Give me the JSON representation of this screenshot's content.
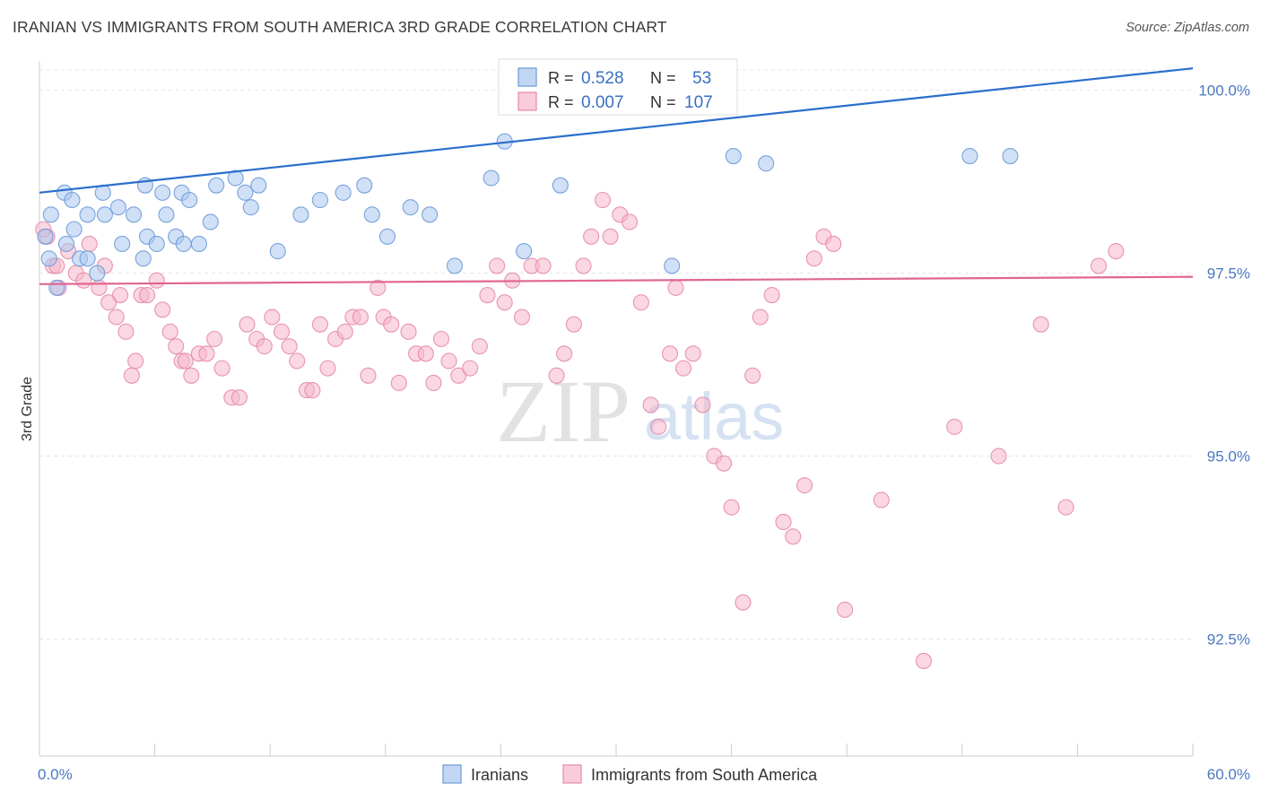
{
  "title": "IRANIAN VS IMMIGRANTS FROM SOUTH AMERICA 3RD GRADE CORRELATION CHART",
  "source": "Source: ZipAtlas.com",
  "watermark": {
    "zip": "ZIP",
    "atlas": "atlas"
  },
  "colors": {
    "blue_fill": "#a9c6ee",
    "blue_stroke": "#6b9ad8",
    "blue_line": "#2a6fcc",
    "pink_fill": "#f6b6ca",
    "pink_stroke": "#e58aa8",
    "pink_line": "#e06690",
    "tick_text": "#4a78c2",
    "grid": "#e4e4e4"
  },
  "stats": {
    "r_label": "R =",
    "n_label": "N =",
    "series1_r": "0.528",
    "series1_n": "53",
    "series2_r": "0.007",
    "series2_n": "107"
  },
  "chart_data": {
    "type": "scatter",
    "xlabel": "",
    "ylabel": "3rd Grade",
    "xlim": [
      0,
      60
    ],
    "ylim": [
      90.9,
      100.4
    ],
    "x_tick_labels": [
      "0.0%",
      "60.0%"
    ],
    "y_ticks": [
      92.5,
      95.0,
      97.5,
      100.0
    ],
    "y_tick_labels": [
      "92.5%",
      "95.0%",
      "97.5%",
      "100.0%"
    ],
    "grid": "horizontal dashed",
    "legend": {
      "position": "bottom-center",
      "entries": [
        "Iranians",
        "Immigrants from South America"
      ]
    },
    "series": [
      {
        "name": "Iranians",
        "color": "#a9c6ee",
        "trend": {
          "x": [
            0,
            60
          ],
          "y": [
            98.6,
            100.3
          ]
        },
        "points": [
          [
            0.5,
            97.7
          ],
          [
            0.9,
            97.3
          ],
          [
            1.4,
            97.9
          ],
          [
            2.1,
            97.7
          ],
          [
            2.5,
            97.7
          ],
          [
            3.0,
            97.5
          ],
          [
            0.3,
            98.0
          ],
          [
            0.6,
            98.3
          ],
          [
            1.3,
            98.6
          ],
          [
            1.8,
            98.1
          ],
          [
            1.7,
            98.5
          ],
          [
            2.5,
            98.3
          ],
          [
            3.3,
            98.6
          ],
          [
            3.4,
            98.3
          ],
          [
            4.1,
            98.4
          ],
          [
            4.3,
            97.9
          ],
          [
            4.9,
            98.3
          ],
          [
            5.4,
            97.7
          ],
          [
            5.6,
            98.0
          ],
          [
            5.5,
            98.7
          ],
          [
            6.1,
            97.9
          ],
          [
            6.4,
            98.6
          ],
          [
            6.6,
            98.3
          ],
          [
            7.1,
            98.0
          ],
          [
            7.4,
            98.6
          ],
          [
            7.5,
            97.9
          ],
          [
            7.8,
            98.5
          ],
          [
            8.3,
            97.9
          ],
          [
            8.9,
            98.2
          ],
          [
            9.2,
            98.7
          ],
          [
            10.2,
            98.8
          ],
          [
            10.7,
            98.6
          ],
          [
            11.0,
            98.4
          ],
          [
            11.4,
            98.7
          ],
          [
            12.4,
            97.8
          ],
          [
            13.6,
            98.3
          ],
          [
            14.6,
            98.5
          ],
          [
            15.8,
            98.6
          ],
          [
            16.9,
            98.7
          ],
          [
            17.3,
            98.3
          ],
          [
            18.1,
            98.0
          ],
          [
            19.3,
            98.4
          ],
          [
            20.3,
            98.3
          ],
          [
            21.6,
            97.6
          ],
          [
            23.5,
            98.8
          ],
          [
            24.2,
            99.3
          ],
          [
            25.2,
            97.8
          ],
          [
            27.1,
            98.7
          ],
          [
            32.9,
            97.6
          ],
          [
            36.1,
            99.1
          ],
          [
            37.8,
            99.0
          ],
          [
            48.4,
            99.1
          ],
          [
            50.5,
            99.1
          ]
        ],
        "points_note_y_units": "percent"
      },
      {
        "name": "Immigrants from South America",
        "color": "#f6b6ca",
        "trend": {
          "x": [
            0,
            60
          ],
          "y": [
            97.35,
            97.45
          ]
        },
        "points": [
          [
            0.4,
            98.0
          ],
          [
            0.7,
            97.6
          ],
          [
            1.0,
            97.3
          ],
          [
            1.5,
            97.8
          ],
          [
            1.9,
            97.5
          ],
          [
            2.3,
            97.4
          ],
          [
            2.6,
            97.9
          ],
          [
            3.1,
            97.3
          ],
          [
            3.4,
            97.6
          ],
          [
            3.6,
            97.1
          ],
          [
            4.0,
            96.9
          ],
          [
            4.2,
            97.2
          ],
          [
            4.5,
            96.7
          ],
          [
            4.8,
            96.1
          ],
          [
            5.0,
            96.3
          ],
          [
            5.3,
            97.2
          ],
          [
            5.6,
            97.2
          ],
          [
            6.1,
            97.4
          ],
          [
            6.4,
            97.0
          ],
          [
            6.8,
            96.7
          ],
          [
            7.1,
            96.5
          ],
          [
            7.4,
            96.3
          ],
          [
            7.6,
            96.3
          ],
          [
            7.9,
            96.1
          ],
          [
            8.3,
            96.4
          ],
          [
            8.7,
            96.4
          ],
          [
            9.1,
            96.6
          ],
          [
            9.5,
            96.2
          ],
          [
            10.0,
            95.8
          ],
          [
            10.4,
            95.8
          ],
          [
            10.8,
            96.8
          ],
          [
            11.3,
            96.6
          ],
          [
            11.7,
            96.5
          ],
          [
            12.1,
            96.9
          ],
          [
            12.6,
            96.7
          ],
          [
            13.0,
            96.5
          ],
          [
            13.4,
            96.3
          ],
          [
            13.9,
            95.9
          ],
          [
            14.2,
            95.9
          ],
          [
            14.6,
            96.8
          ],
          [
            15.0,
            96.2
          ],
          [
            15.4,
            96.6
          ],
          [
            15.9,
            96.7
          ],
          [
            16.3,
            96.9
          ],
          [
            16.7,
            96.9
          ],
          [
            17.1,
            96.1
          ],
          [
            17.6,
            97.3
          ],
          [
            17.9,
            96.9
          ],
          [
            18.3,
            96.8
          ],
          [
            18.7,
            96.0
          ],
          [
            19.2,
            96.7
          ],
          [
            19.6,
            96.4
          ],
          [
            20.1,
            96.4
          ],
          [
            20.5,
            96.0
          ],
          [
            20.9,
            96.6
          ],
          [
            21.3,
            96.3
          ],
          [
            21.8,
            96.1
          ],
          [
            22.4,
            96.2
          ],
          [
            22.9,
            96.5
          ],
          [
            23.3,
            97.2
          ],
          [
            23.8,
            97.6
          ],
          [
            24.2,
            97.1
          ],
          [
            24.6,
            97.4
          ],
          [
            25.1,
            96.9
          ],
          [
            25.6,
            97.6
          ],
          [
            26.2,
            97.6
          ],
          [
            26.9,
            96.1
          ],
          [
            27.3,
            96.4
          ],
          [
            27.8,
            96.8
          ],
          [
            28.3,
            97.6
          ],
          [
            28.7,
            98.0
          ],
          [
            29.3,
            98.5
          ],
          [
            29.7,
            98.0
          ],
          [
            30.2,
            98.3
          ],
          [
            30.7,
            98.2
          ],
          [
            31.3,
            97.1
          ],
          [
            31.8,
            95.7
          ],
          [
            32.2,
            95.4
          ],
          [
            32.8,
            96.4
          ],
          [
            33.1,
            97.3
          ],
          [
            33.5,
            96.2
          ],
          [
            34.0,
            96.4
          ],
          [
            34.5,
            95.7
          ],
          [
            35.1,
            95.0
          ],
          [
            35.6,
            94.9
          ],
          [
            36.0,
            94.3
          ],
          [
            36.6,
            93.0
          ],
          [
            37.1,
            96.1
          ],
          [
            37.5,
            96.9
          ],
          [
            38.1,
            97.2
          ],
          [
            38.7,
            94.1
          ],
          [
            39.2,
            93.9
          ],
          [
            39.8,
            94.6
          ],
          [
            40.3,
            97.7
          ],
          [
            40.8,
            98.0
          ],
          [
            41.3,
            97.9
          ],
          [
            41.9,
            92.9
          ],
          [
            43.8,
            94.4
          ],
          [
            46.0,
            92.2
          ],
          [
            47.6,
            95.4
          ],
          [
            49.9,
            95.0
          ],
          [
            52.1,
            96.8
          ],
          [
            53.4,
            94.3
          ],
          [
            55.1,
            97.6
          ],
          [
            56.0,
            97.8
          ],
          [
            0.2,
            98.1
          ],
          [
            0.9,
            97.6
          ]
        ],
        "points_note_y_units": "percent"
      }
    ]
  }
}
